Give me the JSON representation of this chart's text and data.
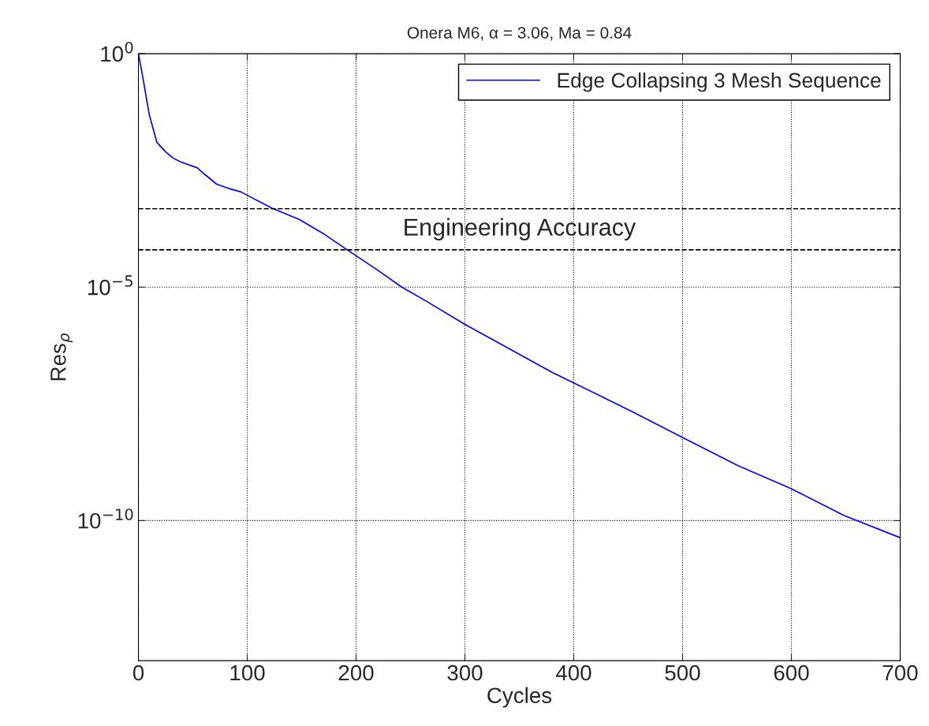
{
  "chart_data": {
    "type": "line",
    "title": "Onera M6, α = 3.06, Ma = 0.84",
    "xlabel": "Cycles",
    "ylabel": "Res$_{ρ}$",
    "x": [
      0,
      3,
      10,
      17,
      25,
      32,
      39,
      54,
      61,
      72,
      83,
      94,
      104,
      123,
      148,
      170,
      191,
      220,
      242,
      264,
      300,
      329,
      380,
      400,
      453,
      500,
      551,
      600,
      648,
      700
    ],
    "series": [
      {
        "name": "Edge Collapsing 3 Mesh Sequence",
        "color": "#0000ff",
        "values": [
          1,
          0.43,
          0.049,
          0.0126,
          0.0079,
          0.0058,
          0.0048,
          0.0036,
          0.0026,
          0.0016,
          0.0013,
          0.0011,
          0.00083,
          0.00049,
          0.00028,
          0.00014,
          6.5e-05,
          2.3e-05,
          1e-05,
          5.1e-06,
          1.6e-06,
          6.8e-07,
          1.5e-07,
          8.9e-08,
          2.2e-08,
          6e-09,
          1.5e-09,
          4.8e-10,
          1.3e-10,
          4.3e-11
        ]
      }
    ],
    "log": "y",
    "xlim": [
      0,
      700
    ],
    "xticks": [
      0,
      100,
      200,
      300,
      400,
      500,
      600,
      700
    ],
    "ylim": [
      1e-13,
      1
    ],
    "yticks": [
      {
        "value": 1,
        "label": "10$^{0}$"
      },
      {
        "value": 1e-05,
        "label": "10$^{−5}$"
      },
      {
        "value": 1e-10,
        "label": "10$^{−10}$"
      }
    ],
    "ref_lines": [
      {
        "axis": "y",
        "value": 0.00048,
        "color": "#000000",
        "line_style": "dashed"
      },
      {
        "axis": "y",
        "value": 6.3e-05,
        "color": "#000000",
        "line_style": "dashed"
      }
    ],
    "annotations": [
      "Engineering Accuracy"
    ],
    "grid": true,
    "legend": "top right",
    "line_style": "solid",
    "marker": "none"
  }
}
